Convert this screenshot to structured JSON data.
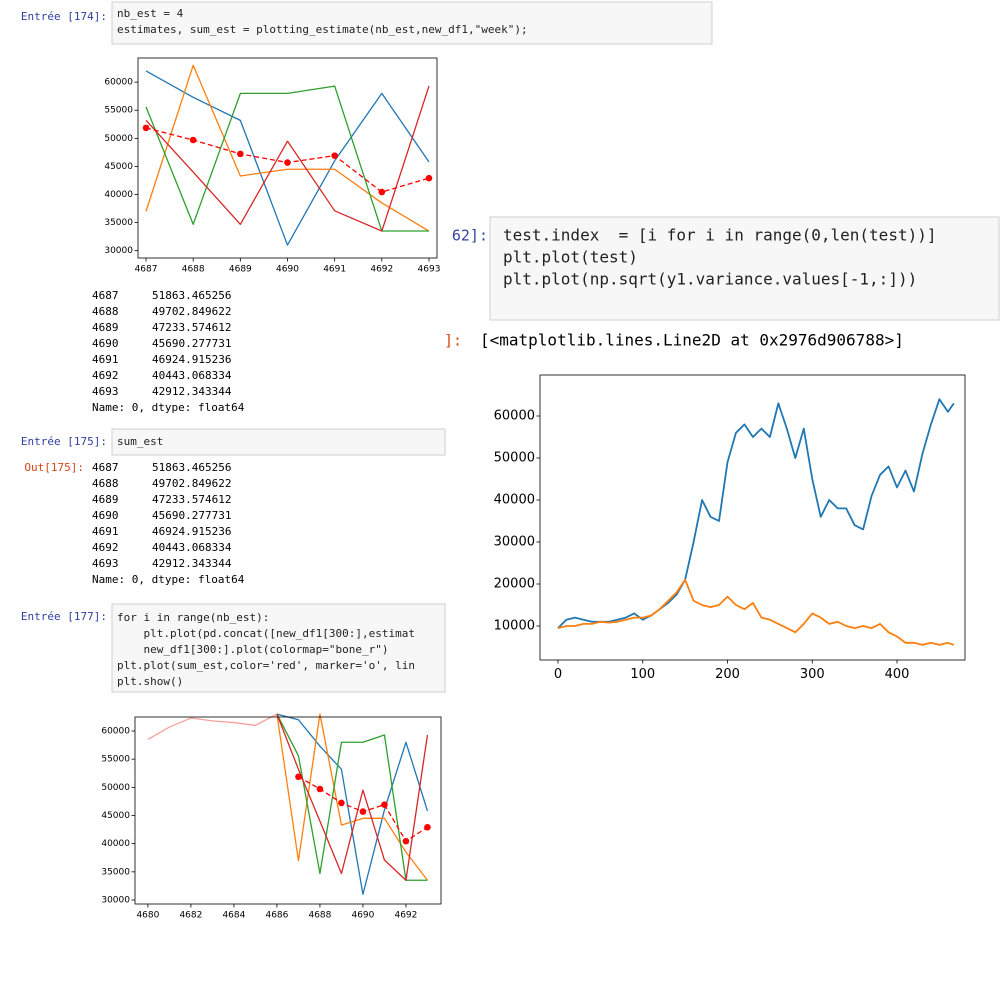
{
  "cells": [
    {
      "prompt": "Entrée [174]:",
      "code": [
        "nb_est = 4",
        "estimates, sum_est = plotting_estimate(nb_est,new_df1,\"week\");"
      ],
      "stdout": {
        "rows": [
          [
            "4687",
            "51863.465256"
          ],
          [
            "4688",
            "49702.849622"
          ],
          [
            "4689",
            "47233.574612"
          ],
          [
            "4690",
            "45690.277731"
          ],
          [
            "4691",
            "46924.915236"
          ],
          [
            "4692",
            "40443.068334"
          ],
          [
            "4693",
            "42912.343344"
          ]
        ],
        "footer": "Name: 0, dtype: float64"
      }
    },
    {
      "prompt": "Entrée [175]:",
      "code": [
        "sum_est"
      ],
      "out_prompt": "Out[175]:",
      "output": {
        "rows": [
          [
            "4687",
            "51863.465256"
          ],
          [
            "4688",
            "49702.849622"
          ],
          [
            "4689",
            "47233.574612"
          ],
          [
            "4690",
            "45690.277731"
          ],
          [
            "4691",
            "46924.915236"
          ],
          [
            "4692",
            "40443.068334"
          ],
          [
            "4693",
            "42912.343344"
          ]
        ],
        "footer": "Name: 0, dtype: float64"
      }
    },
    {
      "prompt": "Entrée [177]:",
      "code": [
        "for i in range(nb_est):",
        "    plt.plot(pd.concat([new_df1[300:],estimat",
        "    new_df1[300:].plot(colormap=\"bone_r\")",
        "plt.plot(sum_est,color='red', marker='o', lin",
        "plt.show()"
      ]
    },
    {
      "prompt": "62]:",
      "code": [
        "test.index  = [i for i in range(0,len(test))]",
        "plt.plot(test)",
        "plt.plot(np.sqrt(y1.variance.values[-1,:]))"
      ],
      "out_prompt": "]:",
      "output_text": "[<matplotlib.lines.Line2D at 0x2976d906788>]"
    }
  ],
  "chart_data": [
    {
      "type": "line",
      "x": [
        4687,
        4688,
        4689,
        4690,
        4691,
        4692,
        4693
      ],
      "xlim": [
        4686.83,
        4693.17
      ],
      "xticks": [
        4687,
        4688,
        4689,
        4690,
        4691,
        4692,
        4693
      ],
      "ylim": [
        28700,
        64300
      ],
      "yticks": [
        30000,
        35000,
        40000,
        45000,
        50000,
        55000,
        60000
      ],
      "series": [
        {
          "color": "#1f77b4",
          "values": [
            62000,
            57300,
            53200,
            31000,
            46000,
            58000,
            45800
          ]
        },
        {
          "color": "#ff7f0e",
          "values": [
            37000,
            63000,
            43300,
            44500,
            44500,
            38500,
            33500
          ]
        },
        {
          "color": "#2ca02c",
          "values": [
            55600,
            34700,
            58000,
            58000,
            59300,
            33500,
            33500
          ]
        },
        {
          "color": "#d62728",
          "values": [
            53200,
            44000,
            34700,
            49500,
            37100,
            33500,
            59300
          ]
        },
        {
          "color": "red",
          "marker": "o",
          "linestyle": "--",
          "values": [
            51863.465256,
            49702.849622,
            47233.574612,
            45690.277731,
            46924.915236,
            40443.068334,
            42912.343344
          ]
        }
      ]
    },
    {
      "type": "line",
      "x": [
        0,
        10,
        20,
        30,
        40,
        50,
        60,
        70,
        80,
        90,
        100,
        110,
        120,
        130,
        140,
        150,
        160,
        170,
        180,
        190,
        200,
        210,
        220,
        230,
        240,
        250,
        260,
        270,
        280,
        290,
        300,
        310,
        320,
        330,
        340,
        350,
        360,
        370,
        380,
        390,
        400,
        410,
        420,
        430,
        440,
        450,
        460,
        467
      ],
      "xlim": [
        -21.2,
        480.2
      ],
      "xticks": [
        0,
        100,
        200,
        300,
        400
      ],
      "ylim": [
        1905,
        69762
      ],
      "yticks": [
        10000,
        20000,
        30000,
        40000,
        50000,
        60000
      ],
      "series": [
        {
          "color": "#1f77b4",
          "values": [
            9500,
            11500,
            12000,
            11500,
            11000,
            11000,
            11000,
            11500,
            12000,
            13000,
            11500,
            12500,
            14000,
            15500,
            17500,
            21000,
            30000,
            40000,
            36000,
            35000,
            49000,
            56000,
            58000,
            55000,
            57000,
            55000,
            63000,
            57000,
            50000,
            57000,
            45000,
            36000,
            40000,
            38000,
            38000,
            34000,
            33000,
            41000,
            46000,
            48000,
            43000,
            47000,
            42000,
            51000,
            58000,
            64000,
            61000,
            63000
          ]
        },
        {
          "color": "#ff7f0e",
          "values": [
            9500,
            10000,
            10000,
            10500,
            10500,
            11000,
            10800,
            11000,
            11500,
            12000,
            12000,
            12500,
            14000,
            16000,
            18000,
            21000,
            16000,
            15000,
            14500,
            15000,
            17000,
            15000,
            14000,
            15500,
            12000,
            11500,
            10500,
            9500,
            8500,
            10500,
            13000,
            12000,
            10500,
            11000,
            10000,
            9500,
            10000,
            9500,
            10500,
            8500,
            7500,
            6000,
            6000,
            5500,
            6000,
            5500,
            6000,
            5500
          ]
        }
      ]
    },
    {
      "type": "line",
      "x": [
        4680,
        4681,
        4682,
        4683,
        4684,
        4685,
        4686,
        4687,
        4688,
        4689,
        4690,
        4691,
        4692,
        4693
      ],
      "xlim": [
        4679.4,
        4693.63
      ],
      "xticks": [
        4680,
        4682,
        4684,
        4686,
        4688,
        4690,
        4692
      ],
      "ylim": [
        29290,
        62485
      ],
      "yticks": [
        30000,
        35000,
        40000,
        45000,
        50000,
        55000,
        60000
      ],
      "series": [
        {
          "color": "#f4a0a0",
          "values": [
            58500,
            60700,
            62300,
            61800,
            61500,
            61000,
            63000,
            null,
            null,
            null,
            null,
            null,
            null,
            null
          ]
        },
        {
          "color": "#1f77b4",
          "values": [
            null,
            null,
            null,
            null,
            null,
            null,
            63000,
            62000,
            57300,
            53200,
            31000,
            46000,
            58000,
            45800
          ]
        },
        {
          "color": "#ff7f0e",
          "values": [
            null,
            null,
            null,
            null,
            null,
            null,
            63000,
            37000,
            63000,
            43300,
            44500,
            44500,
            38500,
            33500
          ]
        },
        {
          "color": "#2ca02c",
          "values": [
            null,
            null,
            null,
            null,
            null,
            null,
            63000,
            55600,
            34700,
            58000,
            58000,
            59300,
            33500,
            33500
          ]
        },
        {
          "color": "#d62728",
          "values": [
            null,
            null,
            null,
            null,
            null,
            null,
            63000,
            53200,
            44000,
            34700,
            49500,
            37100,
            33500,
            59300
          ]
        },
        {
          "color": "red",
          "marker": "o",
          "linestyle": "--",
          "values": [
            null,
            null,
            null,
            null,
            null,
            null,
            null,
            51863.465256,
            49702.849622,
            47233.574612,
            45690.277731,
            46924.915236,
            40443.068334,
            42912.343344
          ]
        }
      ]
    }
  ]
}
